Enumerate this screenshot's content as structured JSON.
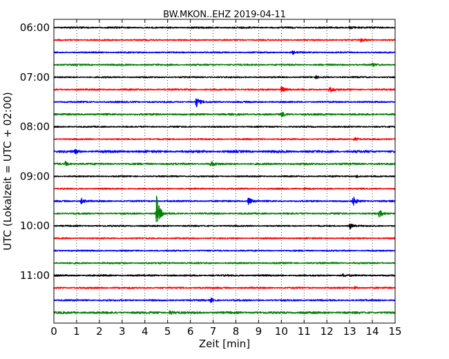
{
  "chart_data": {
    "type": "line",
    "title": "BW.MKON..EHZ 2019-04-11",
    "xlabel": "Zeit  [min]",
    "ylabel": "UTC (Lokalzeit = UTC + 02:00)",
    "xlim": [
      0,
      15
    ],
    "x_ticks": [
      "0",
      "1",
      "2",
      "3",
      "4",
      "5",
      "6",
      "7",
      "8",
      "9",
      "10",
      "11",
      "12",
      "13",
      "14",
      "15"
    ],
    "y_ticks": [
      {
        "label": "06:00",
        "row": 0
      },
      {
        "label": "07:00",
        "row": 4
      },
      {
        "label": "08:00",
        "row": 8
      },
      {
        "label": "09:00",
        "row": 12
      },
      {
        "label": "10:00",
        "row": 16
      },
      {
        "label": "11:00",
        "row": 20
      }
    ],
    "grid": {
      "x": "dotted-vertical",
      "y": "off"
    },
    "row_colors": [
      "#000000",
      "#ff0000",
      "#0000ff",
      "#008000"
    ],
    "rows": [
      {
        "start": "06:00",
        "noise": 0.35,
        "events": [
          {
            "min": 13.0,
            "amp": 1.2
          }
        ]
      },
      {
        "start": "06:15",
        "noise": 0.3,
        "events": [
          {
            "min": 13.5,
            "amp": 1.3
          }
        ]
      },
      {
        "start": "06:30",
        "noise": 0.3,
        "events": [
          {
            "min": 10.5,
            "amp": 0.9
          }
        ]
      },
      {
        "start": "06:45",
        "noise": 0.35,
        "events": [
          {
            "min": 14.0,
            "amp": 1.0
          }
        ]
      },
      {
        "start": "07:00",
        "noise": 0.3,
        "events": [
          {
            "min": 11.5,
            "amp": 0.7
          }
        ]
      },
      {
        "start": "07:15",
        "noise": 0.35,
        "events": [
          {
            "min": 10.0,
            "amp": 2.0
          },
          {
            "min": 12.1,
            "amp": 2.3
          }
        ]
      },
      {
        "start": "07:30",
        "noise": 0.35,
        "events": [
          {
            "min": 6.25,
            "amp": 3.0
          }
        ]
      },
      {
        "start": "07:45",
        "noise": 0.4,
        "events": [
          {
            "min": 10.0,
            "amp": 1.4
          }
        ]
      },
      {
        "start": "08:00",
        "noise": 0.3,
        "events": []
      },
      {
        "start": "08:15",
        "noise": 0.3,
        "events": [
          {
            "min": 13.2,
            "amp": 1.2
          }
        ]
      },
      {
        "start": "08:30",
        "noise": 0.5,
        "events": [
          {
            "min": 0.9,
            "amp": 1.1
          }
        ]
      },
      {
        "start": "08:45",
        "noise": 0.4,
        "events": [
          {
            "min": 0.5,
            "amp": 1.2
          },
          {
            "min": 6.9,
            "amp": 1.4
          }
        ]
      },
      {
        "start": "09:00",
        "noise": 0.3,
        "events": [
          {
            "min": 13.3,
            "amp": 0.8
          }
        ]
      },
      {
        "start": "09:15",
        "noise": 0.3,
        "events": [
          {
            "min": 11.0,
            "amp": 0.7
          }
        ]
      },
      {
        "start": "09:30",
        "noise": 0.35,
        "events": [
          {
            "min": 1.2,
            "amp": 1.6
          },
          {
            "min": 8.55,
            "amp": 2.5
          },
          {
            "min": 13.15,
            "amp": 2.5
          }
        ]
      },
      {
        "start": "09:45",
        "noise": 0.35,
        "events": [
          {
            "min": 4.5,
            "amp": 11.0
          },
          {
            "min": 14.3,
            "amp": 2.2
          }
        ]
      },
      {
        "start": "10:00",
        "noise": 0.3,
        "events": [
          {
            "min": 13.0,
            "amp": 1.8
          }
        ]
      },
      {
        "start": "10:15",
        "noise": 0.3,
        "events": []
      },
      {
        "start": "10:30",
        "noise": 0.3,
        "events": []
      },
      {
        "start": "10:45",
        "noise": 0.35,
        "events": []
      },
      {
        "start": "11:00",
        "noise": 0.35,
        "events": [
          {
            "min": 12.7,
            "amp": 0.8
          }
        ]
      },
      {
        "start": "11:15",
        "noise": 0.35,
        "events": [
          {
            "min": 13.2,
            "amp": 0.7
          }
        ]
      },
      {
        "start": "11:30",
        "noise": 0.35,
        "events": [
          {
            "min": 6.9,
            "amp": 1.1
          }
        ]
      },
      {
        "start": "11:45",
        "noise": 0.45,
        "events": [
          {
            "min": 5.1,
            "amp": 1.0
          }
        ]
      }
    ]
  }
}
